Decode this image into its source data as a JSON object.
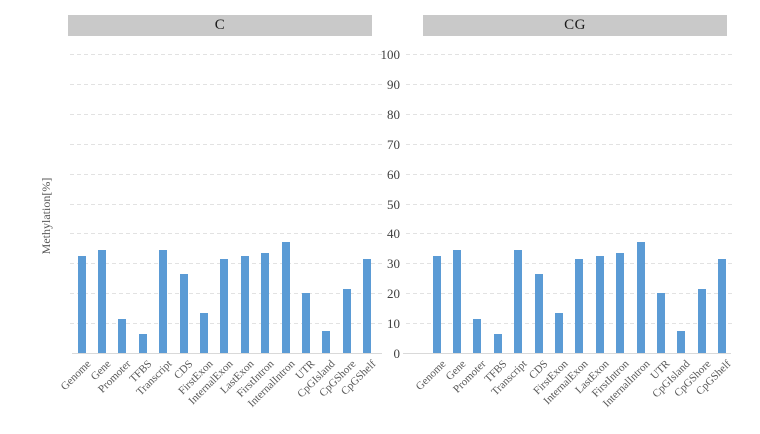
{
  "chart_data": {
    "type": "bar",
    "title": "",
    "xlabel": "",
    "ylabel": "Methylation[%]",
    "ylim": [
      0,
      100
    ],
    "yticks": [
      0,
      10,
      20,
      30,
      40,
      50,
      60,
      70,
      80,
      90,
      100
    ],
    "grid": true,
    "gridstyle": "dashed",
    "legend": false,
    "panel_titles": [
      "C",
      "CG"
    ],
    "categories": [
      "Genome",
      "Gene",
      "Promoter",
      "TFBS",
      "Transcript",
      "CDS",
      "FirstExon",
      "InternalExon",
      "LastExon",
      "FirstIntron",
      "InternalIntron",
      "UTR",
      "CpGIsland",
      "CpGShore",
      "CpGShelf"
    ],
    "series": [
      {
        "name": "C",
        "values": [
          32.3,
          34.4,
          11.5,
          6.3,
          34.3,
          26.3,
          13.4,
          31.6,
          32.3,
          33.3,
          37.1,
          20.2,
          7.3,
          21.3,
          31.4
        ]
      },
      {
        "name": "CG",
        "values": [
          32.3,
          34.4,
          11.5,
          6.3,
          34.3,
          26.3,
          13.4,
          31.6,
          32.3,
          33.3,
          37.1,
          20.2,
          7.3,
          21.3,
          31.4
        ]
      }
    ]
  },
  "colors": {
    "bar": "#5B9BD5",
    "header_bg": "#C9C9C9",
    "grid": "#E2E2E2",
    "axis": "#D9D9D9",
    "tick_text": "#404040",
    "muted_text": "#595959"
  }
}
